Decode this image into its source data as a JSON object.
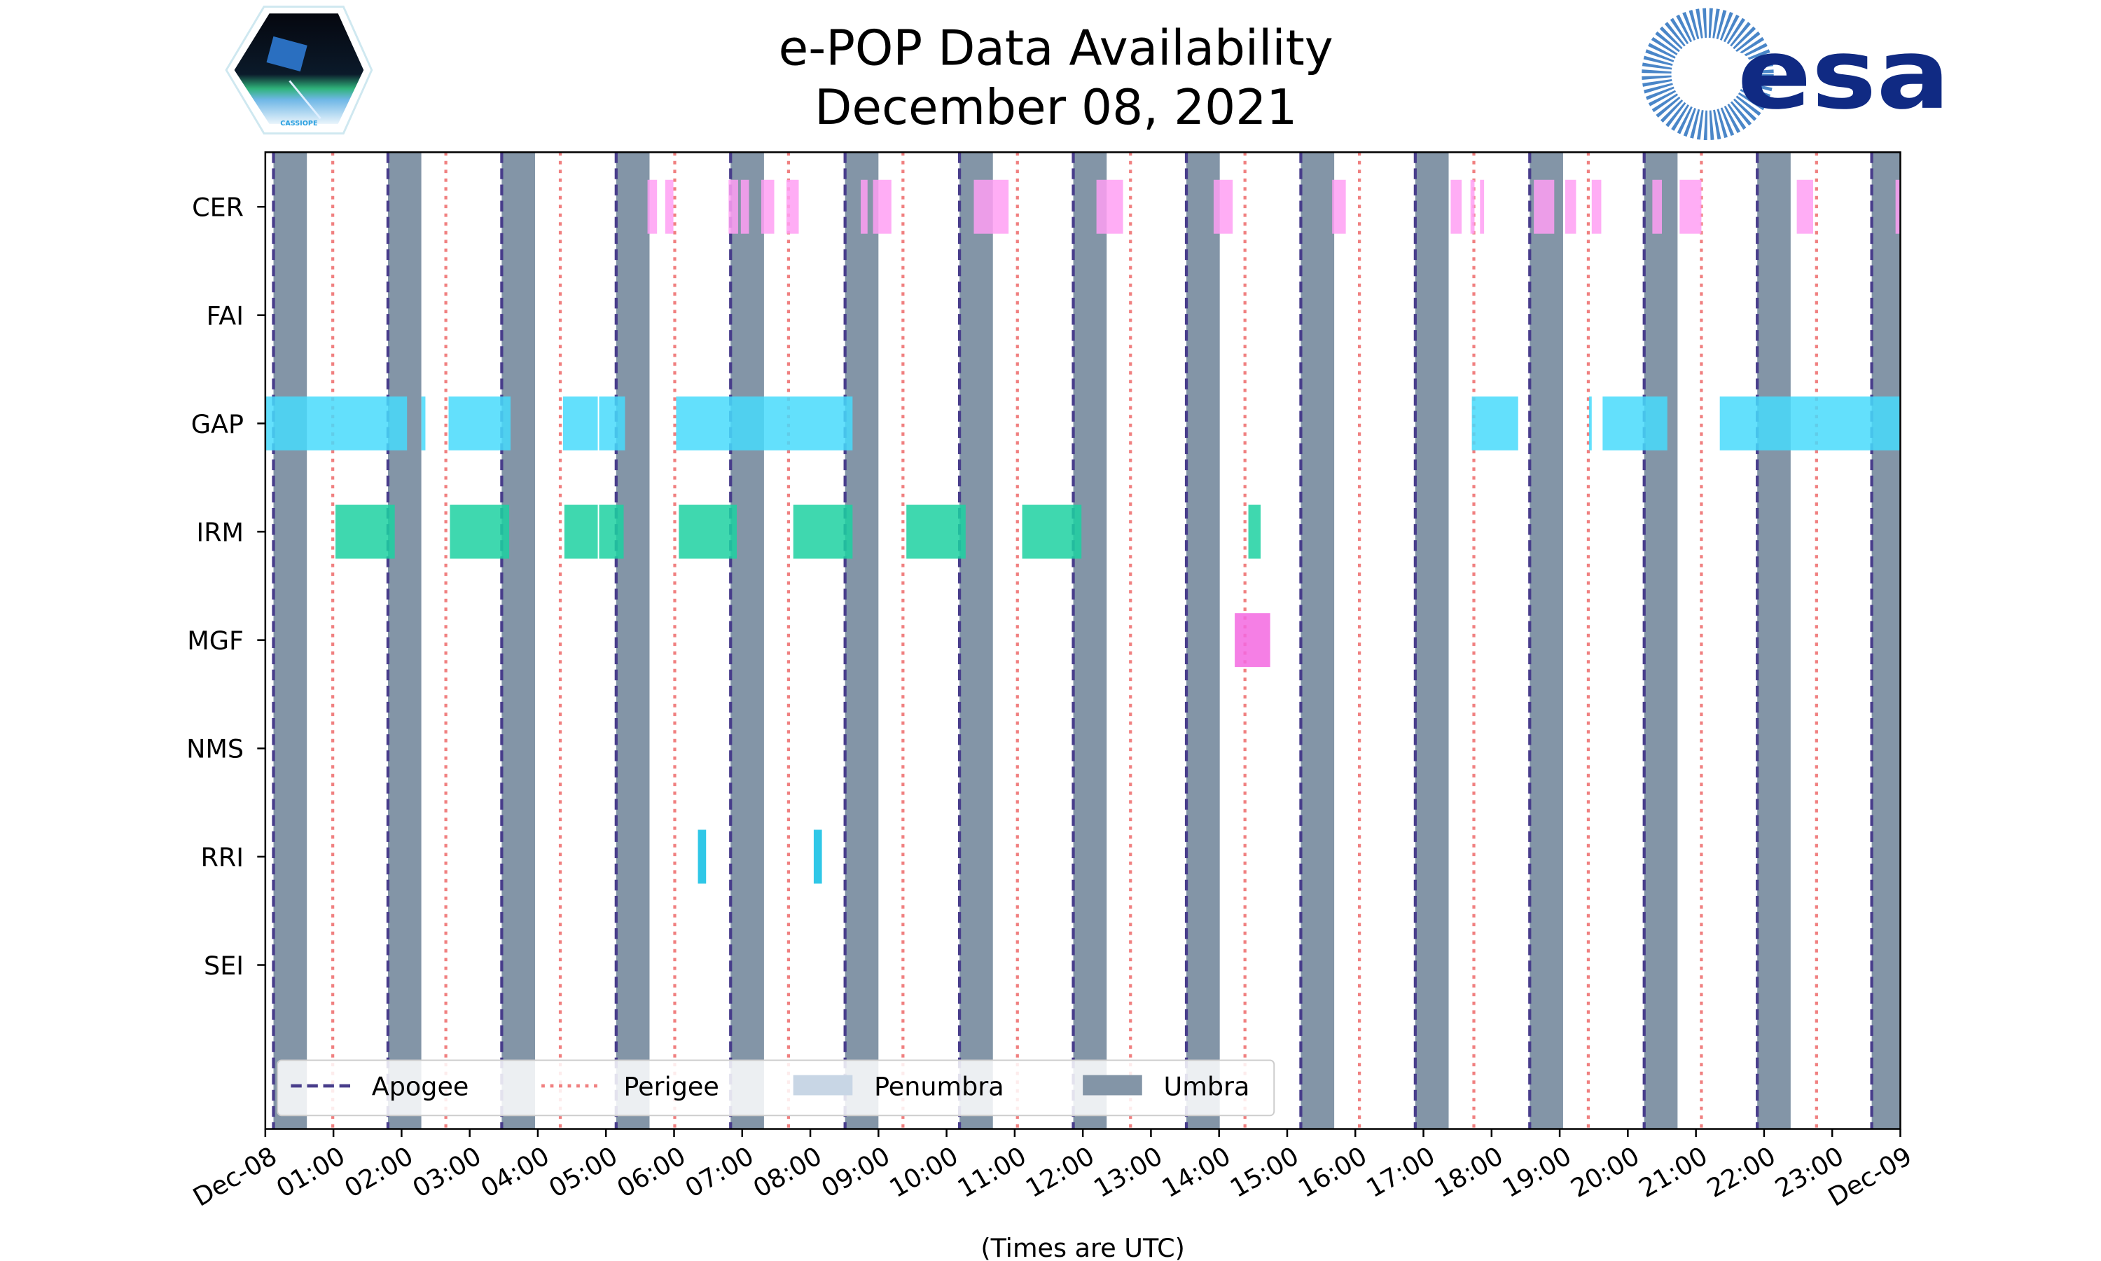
{
  "header": {
    "title_line1": "e-POP Data Availability",
    "title_line2": "December 08, 2021",
    "logo_left_text": "CASSIOPE",
    "logo_right_text": "esa"
  },
  "chart_data": {
    "type": "timeline",
    "title": "e-POP Data Availability December 08, 2021",
    "xlabel": "(Times are UTC)",
    "xlim_hours": [
      0,
      24
    ],
    "x_tick_labels": [
      "Dec-08",
      "01:00",
      "02:00",
      "03:00",
      "04:00",
      "05:00",
      "06:00",
      "07:00",
      "08:00",
      "09:00",
      "10:00",
      "11:00",
      "12:00",
      "13:00",
      "14:00",
      "15:00",
      "16:00",
      "17:00",
      "18:00",
      "19:00",
      "20:00",
      "21:00",
      "22:00",
      "23:00",
      "Dec-09"
    ],
    "instruments": [
      "CER",
      "FAI",
      "GAP",
      "IRM",
      "MGF",
      "NMS",
      "RRI",
      "SEI"
    ],
    "legend": {
      "placement": "lower-left",
      "entries": [
        {
          "label": "Apogee",
          "style": "dashed",
          "color": "#483d8b"
        },
        {
          "label": "Perigee",
          "style": "dotted",
          "color": "#f08080"
        },
        {
          "label": "Penumbra",
          "style": "patch",
          "color": "#c8d6e5"
        },
        {
          "label": "Umbra",
          "style": "patch",
          "color": "#8395a7"
        }
      ]
    },
    "umbra_intervals_hours": [
      [
        0.12,
        0.61
      ],
      [
        1.8,
        2.29
      ],
      [
        3.47,
        3.96
      ],
      [
        5.15,
        5.64
      ],
      [
        6.83,
        7.32
      ],
      [
        8.51,
        9.0
      ],
      [
        10.19,
        10.68
      ],
      [
        11.86,
        12.35
      ],
      [
        13.52,
        14.01
      ],
      [
        15.2,
        15.69
      ],
      [
        16.88,
        17.37
      ],
      [
        18.56,
        19.05
      ],
      [
        20.24,
        20.73
      ],
      [
        21.9,
        22.39
      ],
      [
        23.58,
        24.0
      ]
    ],
    "apogee_hours": [
      0.12,
      1.8,
      3.47,
      5.15,
      6.83,
      8.51,
      10.19,
      11.86,
      13.52,
      15.2,
      16.88,
      18.56,
      20.24,
      21.9,
      23.58
    ],
    "perigee_hours": [
      0.99,
      2.65,
      4.33,
      6.01,
      7.68,
      9.36,
      11.04,
      12.7,
      14.38,
      16.06,
      17.74,
      19.42,
      21.08,
      22.77
    ],
    "series": [
      {
        "name": "CER",
        "color": "#ff9ff3",
        "intervals": [
          [
            5.61,
            5.75
          ],
          [
            5.87,
            5.99
          ],
          [
            6.8,
            6.94
          ],
          [
            6.98,
            7.1
          ],
          [
            7.28,
            7.47
          ],
          [
            7.65,
            7.83
          ],
          [
            8.74,
            8.84
          ],
          [
            8.92,
            9.19
          ],
          [
            10.4,
            10.91
          ],
          [
            12.2,
            12.59
          ],
          [
            13.92,
            14.2
          ],
          [
            15.66,
            15.86
          ],
          [
            17.4,
            17.56
          ],
          [
            17.69,
            17.75
          ],
          [
            17.83,
            17.89
          ],
          [
            18.62,
            18.92
          ],
          [
            19.08,
            19.24
          ],
          [
            19.47,
            19.61
          ],
          [
            20.36,
            20.5
          ],
          [
            20.76,
            21.08
          ],
          [
            22.48,
            22.72
          ],
          [
            23.93,
            24.0
          ]
        ]
      },
      {
        "name": "FAI",
        "color": "#feca57",
        "intervals": []
      },
      {
        "name": "GAP",
        "color": "#48dbfb",
        "intervals": [
          [
            0.0,
            2.08
          ],
          [
            2.29,
            2.35
          ],
          [
            2.69,
            3.6
          ],
          [
            4.37,
            4.88
          ],
          [
            4.9,
            5.28
          ],
          [
            6.03,
            8.62
          ],
          [
            17.71,
            18.39
          ],
          [
            19.43,
            19.47
          ],
          [
            19.63,
            20.58
          ],
          [
            21.35,
            24.0
          ]
        ]
      },
      {
        "name": "IRM",
        "color": "#1dd1a1",
        "intervals": [
          [
            1.03,
            1.9
          ],
          [
            2.71,
            3.58
          ],
          [
            4.39,
            4.88
          ],
          [
            4.9,
            5.26
          ],
          [
            6.07,
            6.92
          ],
          [
            7.75,
            8.62
          ],
          [
            9.41,
            10.28
          ],
          [
            11.11,
            11.98
          ],
          [
            14.43,
            14.61
          ]
        ]
      },
      {
        "name": "MGF",
        "color": "#f368e0",
        "intervals": [
          [
            14.23,
            14.75
          ]
        ]
      },
      {
        "name": "NMS",
        "color": "#ff6b6b",
        "intervals": []
      },
      {
        "name": "RRI",
        "color": "#0abde3",
        "intervals": [
          [
            6.35,
            6.47
          ],
          [
            8.05,
            8.17
          ]
        ]
      },
      {
        "name": "SEI",
        "color": "#10ac84",
        "intervals": []
      }
    ]
  }
}
